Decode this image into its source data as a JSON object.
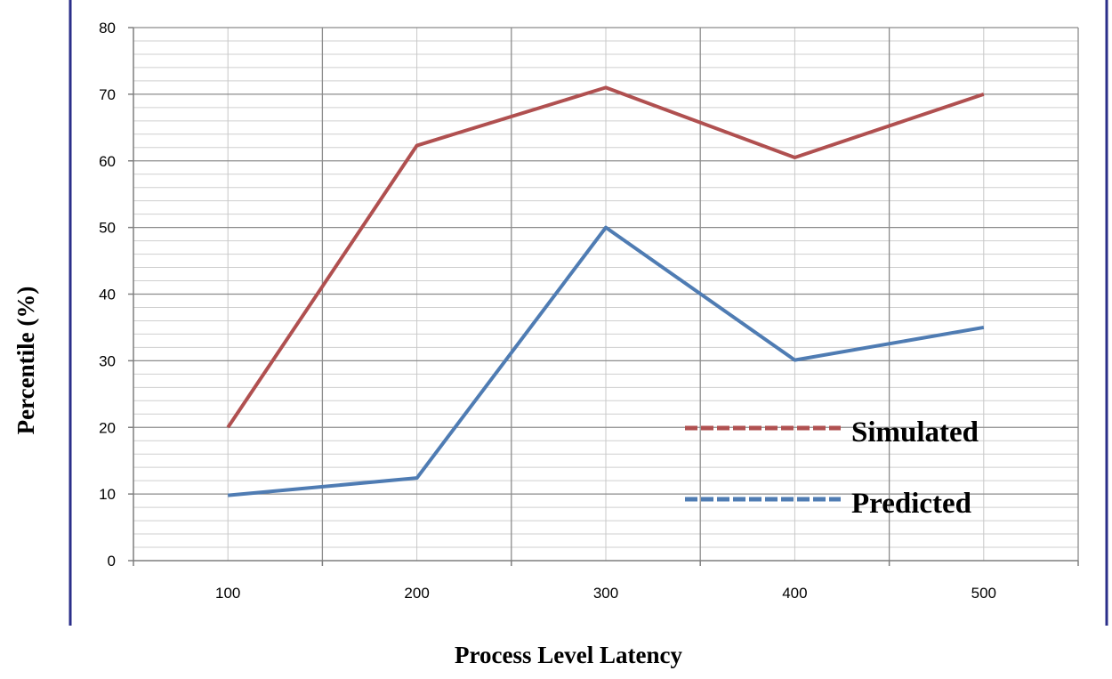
{
  "chart_data": {
    "type": "line",
    "title": "",
    "xlabel": "Process Level Latency",
    "ylabel": "Percentile (%)",
    "x": [
      100,
      200,
      300,
      400,
      500
    ],
    "ylim": [
      0,
      80
    ],
    "yticks": [
      0,
      10,
      20,
      30,
      40,
      50,
      60,
      70,
      80
    ],
    "grid": true,
    "legend_position": "lower-right",
    "series": [
      {
        "name": "Simulated",
        "color": "#b05050",
        "values": [
          20,
          62.3,
          71,
          60.5,
          70
        ]
      },
      {
        "name": "Predicted",
        "color": "#4f7cb3",
        "values": [
          9.8,
          12.4,
          50,
          30.1,
          35
        ]
      }
    ]
  }
}
